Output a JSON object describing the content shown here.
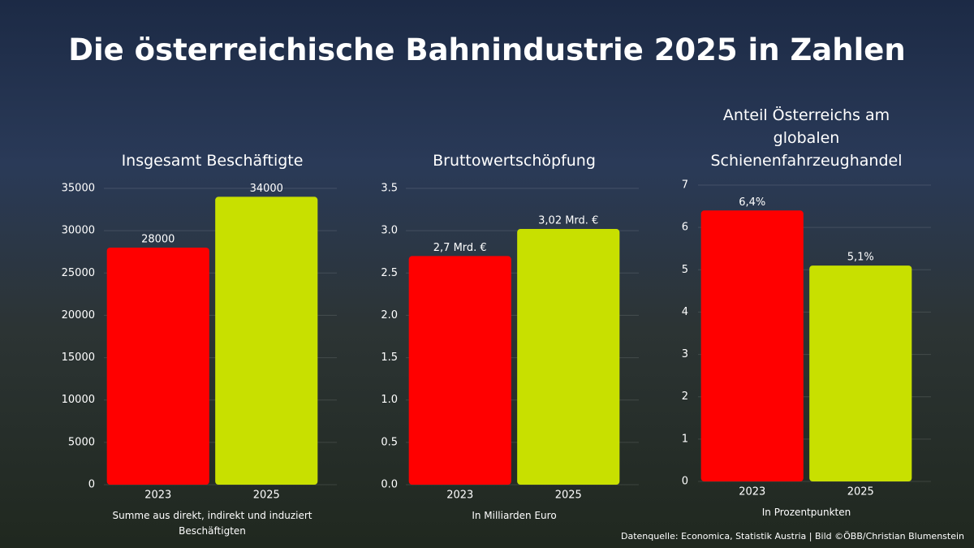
{
  "title": "Die österreichische Bahnindustrie 2025 in Zahlen",
  "source": "Datenquelle: Economica, Statistik Austria | Bild ©ÖBB/Christian Blumenstein",
  "chart_data": [
    {
      "type": "bar",
      "title": "Insgesamt Beschäftigte",
      "note": "Summe aus direkt, indirekt und induziert Beschäftigten",
      "categories": [
        "2023",
        "2025"
      ],
      "values": [
        28000,
        34000
      ],
      "colors": [
        "#ff0000",
        "#c8e000"
      ],
      "ylim": [
        0,
        35000
      ],
      "yticks": [
        0,
        5000,
        10000,
        15000,
        20000,
        25000,
        30000,
        35000
      ],
      "grid": true
    },
    {
      "type": "bar",
      "title": "Bruttowertschöpfung",
      "note": "In Milliarden Euro",
      "categories": [
        "2023",
        "2025"
      ],
      "values": [
        2.7,
        3.02
      ],
      "value_labels": [
        "2,7 Mrd. €",
        "3,02 Mrd. €"
      ],
      "colors": [
        "#ff0000",
        "#c8e000"
      ],
      "ylim": [
        0,
        3.5
      ],
      "yticks": [
        {
          "value": 0,
          "label": "0.0"
        },
        0.5,
        {
          "value": 1,
          "label": "1.0"
        },
        1.5,
        {
          "value": 2,
          "label": "2.0"
        },
        2.5,
        {
          "value": 3,
          "label": "3.0"
        },
        3.5
      ],
      "grid": true
    },
    {
      "type": "bar",
      "title": "Anteil Österreichs am globalen Schienenfahrzeughandel",
      "note": "In Prozentpunkten",
      "categories": [
        "2023",
        "2025"
      ],
      "values": [
        6.4,
        5.1
      ],
      "value_labels": [
        "6,4%",
        "5,1%"
      ],
      "colors": [
        "#ff0000",
        "#c8e000"
      ],
      "ylim": [
        0,
        7
      ],
      "yticks": [
        0,
        1,
        2,
        3,
        4,
        5,
        6,
        7
      ],
      "grid": true
    }
  ]
}
